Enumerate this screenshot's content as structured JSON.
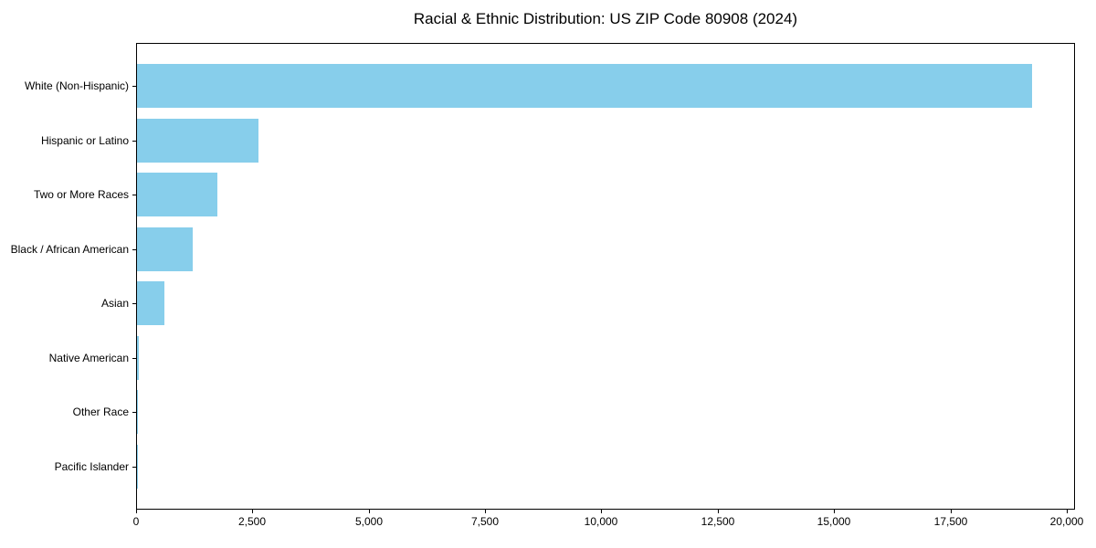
{
  "chart_data": {
    "type": "bar",
    "orientation": "horizontal",
    "title": "Racial & Ethnic Distribution: US ZIP Code 80908 (2024)",
    "categories": [
      "White (Non-Hispanic)",
      "Hispanic or Latino",
      "Two or More Races",
      "Black / African American",
      "Asian",
      "Native American",
      "Other Race",
      "Pacific Islander"
    ],
    "values": [
      19230,
      2610,
      1730,
      1200,
      590,
      40,
      20,
      10
    ],
    "xlabel": "",
    "ylabel": "",
    "xlim": [
      0,
      20177
    ],
    "x_ticks": [
      0,
      2500,
      5000,
      7500,
      10000,
      12500,
      15000,
      17500,
      20000
    ],
    "x_tick_labels": [
      "0",
      "2,500",
      "5,000",
      "7,500",
      "10,000",
      "12,500",
      "15,000",
      "17,500",
      "20,000"
    ],
    "grid": false,
    "legend": "none",
    "bar_color": "#87CEEB",
    "axis_color": "#000000",
    "text_color": "#000000",
    "background_color": "#ffffff"
  }
}
